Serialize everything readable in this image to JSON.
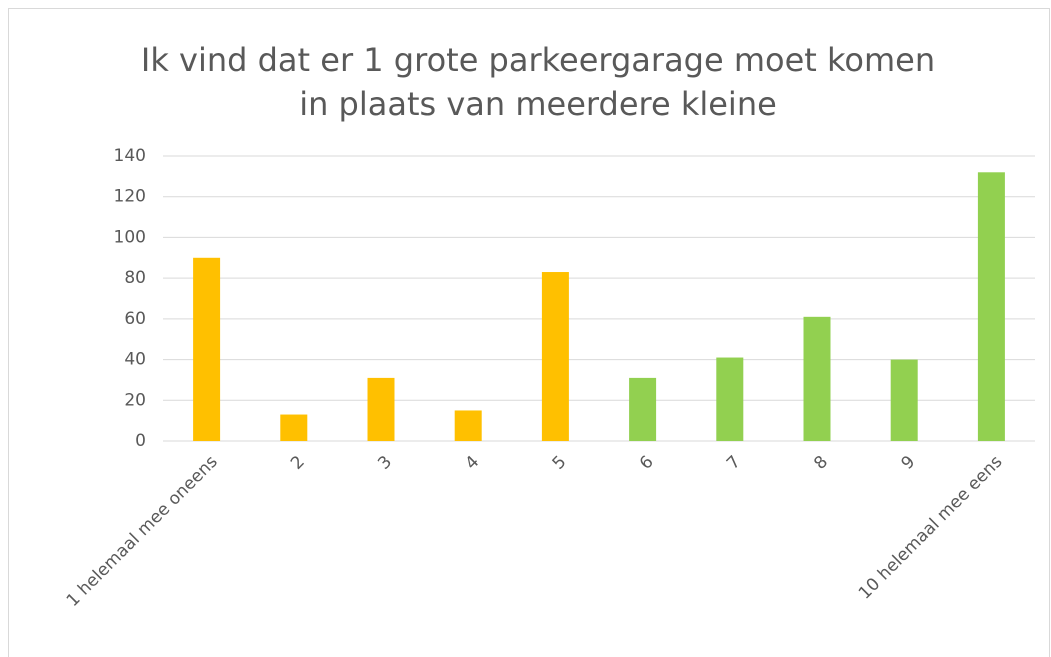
{
  "chart_data": {
    "type": "bar",
    "title": [
      "Ik vind dat er 1 grote parkeergarage moet komen",
      "in plaats van meerdere kleine"
    ],
    "categories": [
      "1 helemaal mee oneens",
      "2",
      "3",
      "4",
      "5",
      "6",
      "7",
      "8",
      "9",
      "10 helemaal mee eens"
    ],
    "values": [
      90,
      13,
      31,
      15,
      83,
      31,
      41,
      61,
      40,
      132
    ],
    "colors": [
      "#ffc000",
      "#ffc000",
      "#ffc000",
      "#ffc000",
      "#ffc000",
      "#92d050",
      "#92d050",
      "#92d050",
      "#92d050",
      "#92d050"
    ],
    "ylim": [
      0,
      140
    ],
    "yticks": [
      0,
      20,
      40,
      60,
      80,
      100,
      120,
      140
    ],
    "grid": true
  }
}
